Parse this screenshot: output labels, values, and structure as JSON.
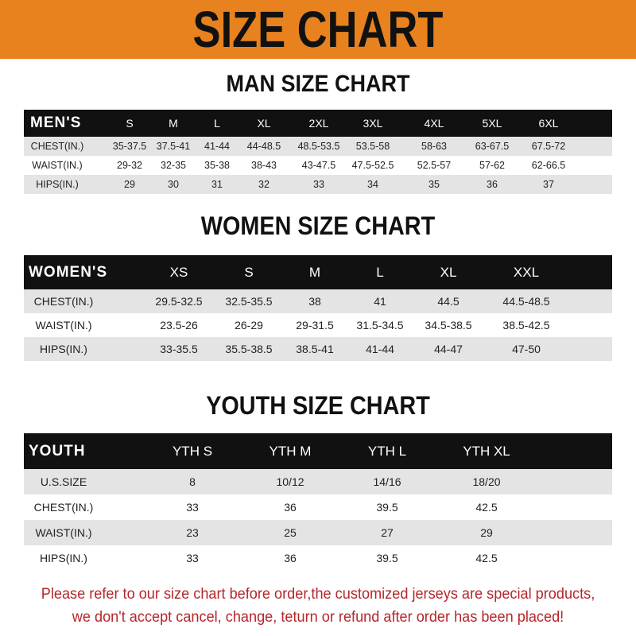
{
  "banner_title": "SIZE CHART",
  "colors": {
    "banner": "#e8821e",
    "header_row": "#111111",
    "note": "#b5262b"
  },
  "men": {
    "title": "MAN SIZE CHART",
    "columns": [
      "MEN'S",
      "S",
      "M",
      "L",
      "XL",
      "2XL",
      "3XL",
      "4XL",
      "5XL",
      "6XL"
    ],
    "rows": [
      [
        "CHEST(IN.)",
        "35-37.5",
        "37.5-41",
        "41-44",
        "44-48.5",
        "48.5-53.5",
        "53.5-58",
        "58-63",
        "63-67.5",
        "67.5-72"
      ],
      [
        "WAIST(IN.)",
        "29-32",
        "32-35",
        "35-38",
        "38-43",
        "43-47.5",
        "47.5-52.5",
        "52.5-57",
        "57-62",
        "62-66.5"
      ],
      [
        "HIPS(IN.)",
        "29",
        "30",
        "31",
        "32",
        "33",
        "34",
        "35",
        "36",
        "37"
      ]
    ]
  },
  "women": {
    "title": "WOMEN SIZE CHART",
    "columns": [
      "WOMEN'S",
      "XS",
      "S",
      "M",
      "L",
      "XL",
      "XXL"
    ],
    "rows": [
      [
        "CHEST(IN.)",
        "29.5-32.5",
        "32.5-35.5",
        "38",
        "41",
        "44.5",
        "44.5-48.5"
      ],
      [
        "WAIST(IN.)",
        "23.5-26",
        "26-29",
        "29-31.5",
        "31.5-34.5",
        "34.5-38.5",
        "38.5-42.5"
      ],
      [
        "HIPS(IN.)",
        "33-35.5",
        "35.5-38.5",
        "38.5-41",
        "41-44",
        "44-47",
        "47-50"
      ]
    ]
  },
  "youth": {
    "title": "YOUTH SIZE CHART",
    "columns": [
      "YOUTH",
      "YTH S",
      "YTH M",
      "YTH L",
      "YTH XL"
    ],
    "rows": [
      [
        "U.S.SIZE",
        "8",
        "10/12",
        "14/16",
        "18/20"
      ],
      [
        "CHEST(IN.)",
        "33",
        "36",
        "39.5",
        "42.5"
      ],
      [
        "WAIST(IN.)",
        "23",
        "25",
        "27",
        "29"
      ],
      [
        "HIPS(IN.)",
        "33",
        "36",
        "39.5",
        "42.5"
      ]
    ]
  },
  "note_lines": [
    "Please refer to our size chart before order,the customized jerseys are special products,",
    "we don't accept cancel, change, teturn or refund after order has been placed!"
  ]
}
